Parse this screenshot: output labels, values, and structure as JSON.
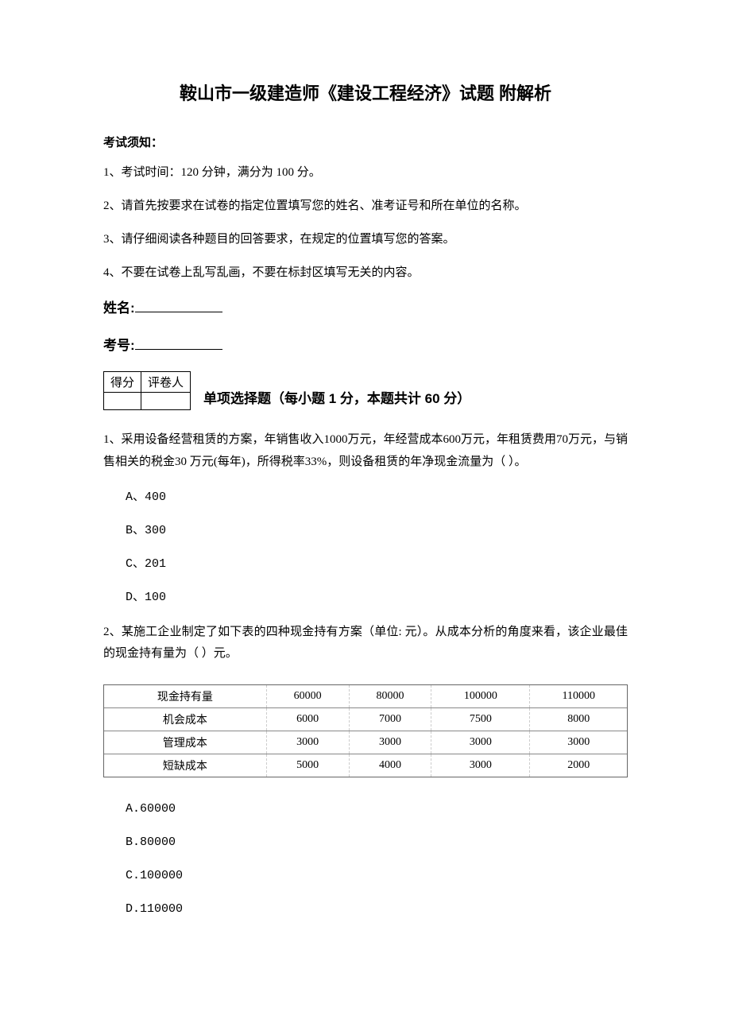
{
  "title": "鞍山市一级建造师《建设工程经济》试题 附解析",
  "notice_label": "考试须知：",
  "instructions": [
    "1、考试时间：120 分钟，满分为 100 分。",
    "2、请首先按要求在试卷的指定位置填写您的姓名、准考证号和所在单位的名称。",
    "3、请仔细阅读各种题目的回答要求，在规定的位置填写您的答案。",
    "4、不要在试卷上乱写乱画，不要在标封区填写无关的内容。"
  ],
  "name_label": "姓名:",
  "id_label": "考号:",
  "score_header": {
    "c1": "得分",
    "c2": "评卷人"
  },
  "section_title": "单项选择题（每小题 1 分，本题共计 60 分）",
  "q1": {
    "text": "1、采用设备经营租赁的方案，年销售收入1000万元，年经营成本600万元，年租赁费用70万元，与销售相关的税金30 万元(每年)，所得税率33%，则设备租赁的年净现金流量为（  ）。",
    "opts": {
      "a": "A、400",
      "b": "B、300",
      "c": "C、201",
      "d": "D、100"
    }
  },
  "q2": {
    "text": "2、某施工企业制定了如下表的四种现金持有方案（单位: 元）。从成本分析的角度来看，该企业最佳的现金持有量为（    ）元。",
    "table": {
      "row_labels": [
        "现金持有量",
        "机会成本",
        "管理成本",
        "短缺成本"
      ],
      "cols": [
        "60000",
        "80000",
        "100000",
        "110000"
      ],
      "rows": [
        [
          "60000",
          "80000",
          "100000",
          "110000"
        ],
        [
          "6000",
          "7000",
          "7500",
          "8000"
        ],
        [
          "3000",
          "3000",
          "3000",
          "3000"
        ],
        [
          "5000",
          "4000",
          "3000",
          "2000"
        ]
      ],
      "border_color": "#666666",
      "dash_color": "#aaaaaa",
      "fontsize": 14
    },
    "opts": {
      "a": "A.60000",
      "b": "B.80000",
      "c": "C.100000",
      "d": "D.110000"
    }
  },
  "colors": {
    "text": "#000000",
    "background": "#ffffff"
  }
}
